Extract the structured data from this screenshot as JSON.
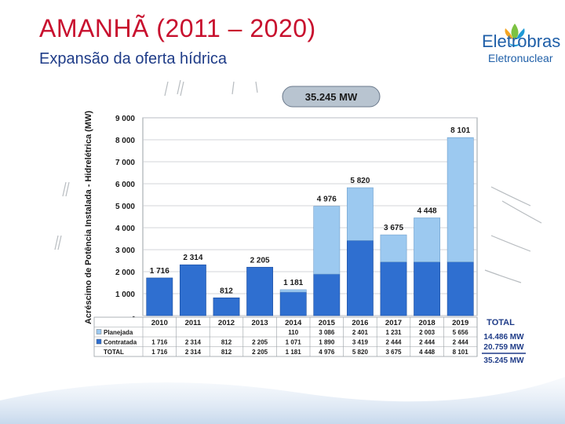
{
  "slide": {
    "title": "AMANHÃ (2011 – 2020)",
    "subtitle": "Expansão da oferta hídrica"
  },
  "logo": {
    "name": "Eletrobras",
    "sub": "Eletronuclear",
    "colors": [
      "#f5a623",
      "#7cc242",
      "#1f9ad6"
    ]
  },
  "chart_data": {
    "type": "bar",
    "stacked": true,
    "total_badge": "35.245 MW",
    "ylabel": "Acréscimo de Potência Instalada - Hidrelétrica (MW)",
    "ylim": [
      0,
      9000
    ],
    "yticks": [
      {
        "value": 0,
        "label": "-"
      },
      {
        "value": 1000,
        "label": "1 000"
      },
      {
        "value": 2000,
        "label": "2 000"
      },
      {
        "value": 3000,
        "label": "3 000"
      },
      {
        "value": 4000,
        "label": "4 000"
      },
      {
        "value": 5000,
        "label": "5 000"
      },
      {
        "value": 6000,
        "label": "6 000"
      },
      {
        "value": 7000,
        "label": "7 000"
      },
      {
        "value": 8000,
        "label": "8 000"
      },
      {
        "value": 9000,
        "label": "9 000"
      }
    ],
    "categories": [
      "2010",
      "2011",
      "2012",
      "2013",
      "2014",
      "2015",
      "2016",
      "2017",
      "2018",
      "2019"
    ],
    "series": [
      {
        "name": "Contratada",
        "color": "#2f6fd0",
        "values": [
          1716,
          2314,
          812,
          2205,
          1071,
          1890,
          3419,
          2444,
          2444,
          2444
        ],
        "labels": [
          "1 716",
          "2 314",
          "812",
          "2 205",
          "1 071",
          "1 890",
          "3 419",
          "2 444",
          "2 444",
          "2 444"
        ]
      },
      {
        "name": "Planejada",
        "color": "#9cc9f0",
        "values": [
          0,
          0,
          0,
          0,
          110,
          3086,
          2401,
          1231,
          2003,
          5656
        ],
        "labels": [
          "",
          "",
          "",
          "",
          "110",
          "3 086",
          "2 401",
          "1 231",
          "2 003",
          "5 656"
        ]
      }
    ],
    "totals": {
      "name": "TOTAL",
      "values": [
        1716,
        2314,
        812,
        2205,
        1181,
        4976,
        5820,
        3675,
        4448,
        8101
      ],
      "labels": [
        "1 716",
        "2 314",
        "812",
        "2 205",
        "1 181",
        "4 976",
        "5 820",
        "3 675",
        "4 448",
        "8 101"
      ]
    },
    "summary": {
      "header": "TOTAL",
      "planejada": "14.486 MW",
      "contratada": "20.759 MW",
      "total": "35.245 MW"
    },
    "grid": true
  }
}
